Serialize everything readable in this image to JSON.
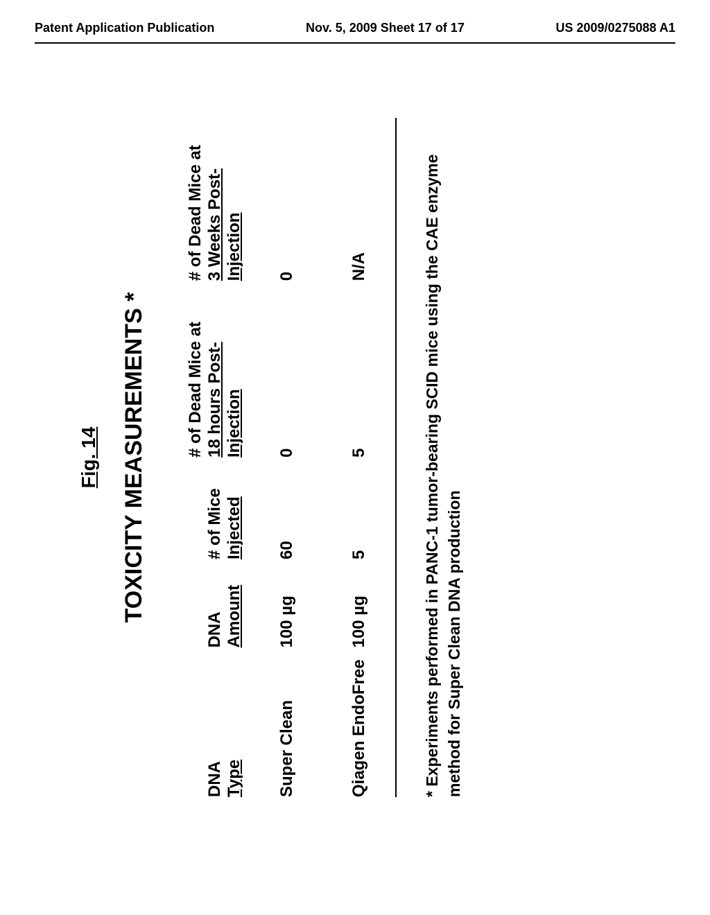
{
  "header": {
    "left": "Patent Application Publication",
    "center": "Nov. 5, 2009   Sheet 17 of 17",
    "right": "US 2009/0275088 A1"
  },
  "figure": {
    "label": "Fig. 14",
    "title": "TOXICITY MEASUREMENTS *"
  },
  "table": {
    "columns": [
      {
        "line1": "DNA",
        "line2": "Type"
      },
      {
        "line1": "DNA",
        "line2": "Amount"
      },
      {
        "line1": "# of Mice",
        "line2": "Injected"
      },
      {
        "line1": "# of Dead Mice at",
        "line2": "18 hours Post-Injection"
      },
      {
        "line1": "# of Dead Mice at",
        "line2": "3 Weeks Post-Injection"
      }
    ],
    "rows": [
      [
        "Super Clean",
        "100 µg",
        "60",
        "0",
        "0"
      ],
      [
        "Qiagen EndoFree",
        "100 µg",
        "5",
        "5",
        "N/A"
      ]
    ]
  },
  "footnote": "* Experiments performed in PANC-1 tumor-bearing SCID mice using the CAE enzyme method for Super Clean DNA production"
}
